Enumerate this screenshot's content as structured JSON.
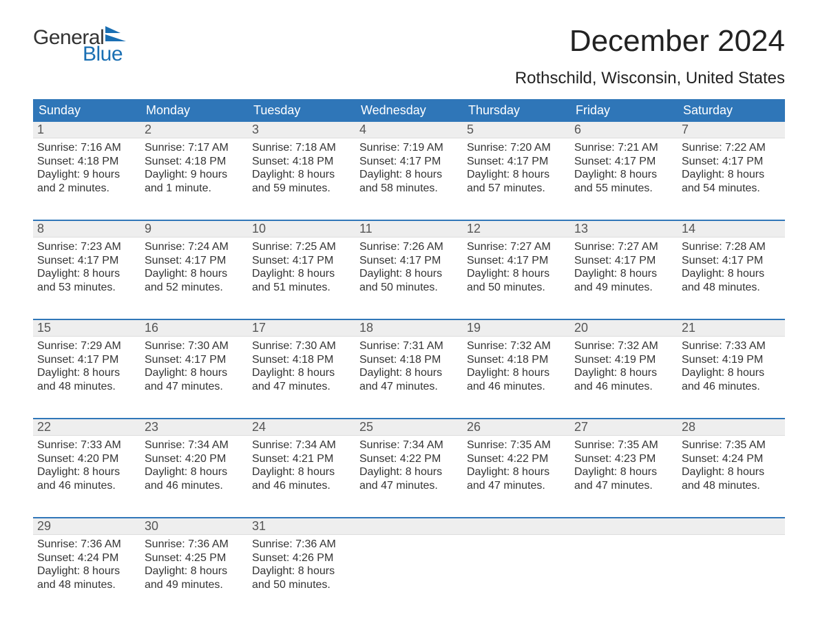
{
  "brand": {
    "word1": "General",
    "word2": "Blue",
    "mark_color": "#1a6fb3"
  },
  "title": {
    "month": "December 2024",
    "location": "Rothschild, Wisconsin, United States"
  },
  "colors": {
    "header_bg": "#2f76b8",
    "header_text": "#ffffff",
    "week_rule": "#2f76b8",
    "daynum_bg": "#eeeeee",
    "daynum_text": "#555555",
    "body_text": "#333333",
    "page_bg": "#ffffff"
  },
  "dow": [
    "Sunday",
    "Monday",
    "Tuesday",
    "Wednesday",
    "Thursday",
    "Friday",
    "Saturday"
  ],
  "weeks": [
    [
      {
        "n": "1",
        "sr": "Sunrise: 7:16 AM",
        "ss": "Sunset: 4:18 PM",
        "d1": "Daylight: 9 hours",
        "d2": "and 2 minutes."
      },
      {
        "n": "2",
        "sr": "Sunrise: 7:17 AM",
        "ss": "Sunset: 4:18 PM",
        "d1": "Daylight: 9 hours",
        "d2": "and 1 minute."
      },
      {
        "n": "3",
        "sr": "Sunrise: 7:18 AM",
        "ss": "Sunset: 4:18 PM",
        "d1": "Daylight: 8 hours",
        "d2": "and 59 minutes."
      },
      {
        "n": "4",
        "sr": "Sunrise: 7:19 AM",
        "ss": "Sunset: 4:17 PM",
        "d1": "Daylight: 8 hours",
        "d2": "and 58 minutes."
      },
      {
        "n": "5",
        "sr": "Sunrise: 7:20 AM",
        "ss": "Sunset: 4:17 PM",
        "d1": "Daylight: 8 hours",
        "d2": "and 57 minutes."
      },
      {
        "n": "6",
        "sr": "Sunrise: 7:21 AM",
        "ss": "Sunset: 4:17 PM",
        "d1": "Daylight: 8 hours",
        "d2": "and 55 minutes."
      },
      {
        "n": "7",
        "sr": "Sunrise: 7:22 AM",
        "ss": "Sunset: 4:17 PM",
        "d1": "Daylight: 8 hours",
        "d2": "and 54 minutes."
      }
    ],
    [
      {
        "n": "8",
        "sr": "Sunrise: 7:23 AM",
        "ss": "Sunset: 4:17 PM",
        "d1": "Daylight: 8 hours",
        "d2": "and 53 minutes."
      },
      {
        "n": "9",
        "sr": "Sunrise: 7:24 AM",
        "ss": "Sunset: 4:17 PM",
        "d1": "Daylight: 8 hours",
        "d2": "and 52 minutes."
      },
      {
        "n": "10",
        "sr": "Sunrise: 7:25 AM",
        "ss": "Sunset: 4:17 PM",
        "d1": "Daylight: 8 hours",
        "d2": "and 51 minutes."
      },
      {
        "n": "11",
        "sr": "Sunrise: 7:26 AM",
        "ss": "Sunset: 4:17 PM",
        "d1": "Daylight: 8 hours",
        "d2": "and 50 minutes."
      },
      {
        "n": "12",
        "sr": "Sunrise: 7:27 AM",
        "ss": "Sunset: 4:17 PM",
        "d1": "Daylight: 8 hours",
        "d2": "and 50 minutes."
      },
      {
        "n": "13",
        "sr": "Sunrise: 7:27 AM",
        "ss": "Sunset: 4:17 PM",
        "d1": "Daylight: 8 hours",
        "d2": "and 49 minutes."
      },
      {
        "n": "14",
        "sr": "Sunrise: 7:28 AM",
        "ss": "Sunset: 4:17 PM",
        "d1": "Daylight: 8 hours",
        "d2": "and 48 minutes."
      }
    ],
    [
      {
        "n": "15",
        "sr": "Sunrise: 7:29 AM",
        "ss": "Sunset: 4:17 PM",
        "d1": "Daylight: 8 hours",
        "d2": "and 48 minutes."
      },
      {
        "n": "16",
        "sr": "Sunrise: 7:30 AM",
        "ss": "Sunset: 4:17 PM",
        "d1": "Daylight: 8 hours",
        "d2": "and 47 minutes."
      },
      {
        "n": "17",
        "sr": "Sunrise: 7:30 AM",
        "ss": "Sunset: 4:18 PM",
        "d1": "Daylight: 8 hours",
        "d2": "and 47 minutes."
      },
      {
        "n": "18",
        "sr": "Sunrise: 7:31 AM",
        "ss": "Sunset: 4:18 PM",
        "d1": "Daylight: 8 hours",
        "d2": "and 47 minutes."
      },
      {
        "n": "19",
        "sr": "Sunrise: 7:32 AM",
        "ss": "Sunset: 4:18 PM",
        "d1": "Daylight: 8 hours",
        "d2": "and 46 minutes."
      },
      {
        "n": "20",
        "sr": "Sunrise: 7:32 AM",
        "ss": "Sunset: 4:19 PM",
        "d1": "Daylight: 8 hours",
        "d2": "and 46 minutes."
      },
      {
        "n": "21",
        "sr": "Sunrise: 7:33 AM",
        "ss": "Sunset: 4:19 PM",
        "d1": "Daylight: 8 hours",
        "d2": "and 46 minutes."
      }
    ],
    [
      {
        "n": "22",
        "sr": "Sunrise: 7:33 AM",
        "ss": "Sunset: 4:20 PM",
        "d1": "Daylight: 8 hours",
        "d2": "and 46 minutes."
      },
      {
        "n": "23",
        "sr": "Sunrise: 7:34 AM",
        "ss": "Sunset: 4:20 PM",
        "d1": "Daylight: 8 hours",
        "d2": "and 46 minutes."
      },
      {
        "n": "24",
        "sr": "Sunrise: 7:34 AM",
        "ss": "Sunset: 4:21 PM",
        "d1": "Daylight: 8 hours",
        "d2": "and 46 minutes."
      },
      {
        "n": "25",
        "sr": "Sunrise: 7:34 AM",
        "ss": "Sunset: 4:22 PM",
        "d1": "Daylight: 8 hours",
        "d2": "and 47 minutes."
      },
      {
        "n": "26",
        "sr": "Sunrise: 7:35 AM",
        "ss": "Sunset: 4:22 PM",
        "d1": "Daylight: 8 hours",
        "d2": "and 47 minutes."
      },
      {
        "n": "27",
        "sr": "Sunrise: 7:35 AM",
        "ss": "Sunset: 4:23 PM",
        "d1": "Daylight: 8 hours",
        "d2": "and 47 minutes."
      },
      {
        "n": "28",
        "sr": "Sunrise: 7:35 AM",
        "ss": "Sunset: 4:24 PM",
        "d1": "Daylight: 8 hours",
        "d2": "and 48 minutes."
      }
    ],
    [
      {
        "n": "29",
        "sr": "Sunrise: 7:36 AM",
        "ss": "Sunset: 4:24 PM",
        "d1": "Daylight: 8 hours",
        "d2": "and 48 minutes."
      },
      {
        "n": "30",
        "sr": "Sunrise: 7:36 AM",
        "ss": "Sunset: 4:25 PM",
        "d1": "Daylight: 8 hours",
        "d2": "and 49 minutes."
      },
      {
        "n": "31",
        "sr": "Sunrise: 7:36 AM",
        "ss": "Sunset: 4:26 PM",
        "d1": "Daylight: 8 hours",
        "d2": "and 50 minutes."
      },
      null,
      null,
      null,
      null
    ]
  ]
}
